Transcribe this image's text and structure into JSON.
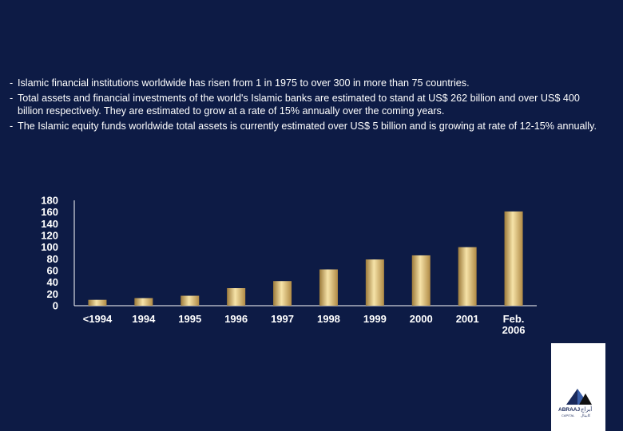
{
  "bullets": [
    "Islamic financial institutions worldwide has risen from 1 in 1975 to over 300 in more than 75 countries.",
    "Total assets and financial investments of the world's Islamic banks are estimated to stand at US$ 262 billion and over US$ 400 billion respectively. They are estimated to grow at a rate of 15% annually over the coming years.",
    "The Islamic equity funds worldwide total assets is currently estimated over US$ 5 billion and is growing at rate of 12-15% annually."
  ],
  "chart_data": {
    "type": "bar",
    "categories": [
      "<1994",
      "1994",
      "1995",
      "1996",
      "1997",
      "1998",
      "1999",
      "2000",
      "2001",
      "Feb. 2006"
    ],
    "values": [
      10,
      13,
      17,
      30,
      42,
      62,
      79,
      86,
      100,
      161
    ],
    "ylim": [
      0,
      180
    ],
    "yticks": [
      "180",
      "160",
      "140",
      "120",
      "100",
      "80",
      "60",
      "40",
      "20",
      "0"
    ],
    "bar_color": "#e8c878"
  },
  "logo": {
    "brand_latin": "ABRAAJ",
    "brand_arabic": "أبراج",
    "sub_latin": "CAPITAL",
    "sub_arabic": "كابيتال"
  }
}
